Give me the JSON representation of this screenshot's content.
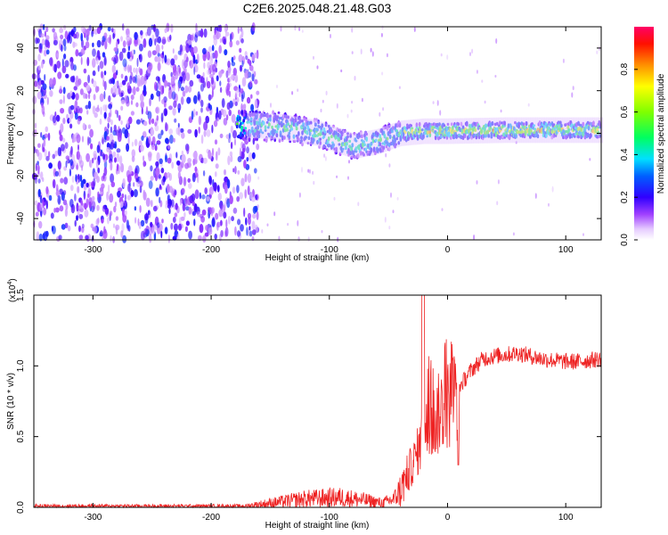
{
  "title": "C2E6.2025.048.21.48.G03",
  "chart_data": [
    {
      "type": "heatmap",
      "name": "spectrogram",
      "xlabel": "Height of straight line (km)",
      "ylabel": "Frequency (Hz)",
      "xlim": [
        -350,
        130
      ],
      "ylim": [
        -50,
        50
      ],
      "xticks": [
        "-300",
        "-200",
        "-100",
        "0",
        "100"
      ],
      "xtick_values": [
        -300,
        -200,
        -100,
        0,
        100
      ],
      "yticks": [
        "-40",
        "-20",
        "0",
        "20",
        "40"
      ],
      "ytick_values": [
        -40,
        -20,
        0,
        20,
        40
      ],
      "band_center_hz": [
        [
          -175,
          4
        ],
        [
          -140,
          3
        ],
        [
          -110,
          0
        ],
        [
          -80,
          -6
        ],
        [
          -60,
          -4
        ],
        [
          -40,
          0
        ],
        [
          -20,
          1
        ],
        [
          0,
          1
        ],
        [
          50,
          1.5
        ],
        [
          130,
          1.5
        ]
      ],
      "noise_region_km": [
        -350,
        -165
      ],
      "colorbar": {
        "label": "Normalized spectral amplitude",
        "range": [
          0,
          1
        ],
        "ticks": [
          "0.0",
          "0.2",
          "0.4",
          "0.6",
          "0.8"
        ],
        "tick_values": [
          0.0,
          0.2,
          0.4,
          0.6,
          0.8
        ],
        "colors": [
          "#ffffff",
          "#cc99ff",
          "#7f00ff",
          "#0000ff",
          "#00ffff",
          "#00ff00",
          "#ffff00",
          "#ff8000",
          "#ff0000",
          "#ff0066"
        ]
      }
    },
    {
      "type": "line",
      "name": "snr",
      "xlabel": "Height of straight line (km)",
      "ylabel": "SNR (10 * v/v)",
      "scale_label": "(x10",
      "scale_exponent": "4",
      "scale_suffix": ")",
      "xlim": [
        -350,
        130
      ],
      "ylim": [
        0,
        1.5
      ],
      "xticks": [
        "-300",
        "-200",
        "-100",
        "0",
        "100"
      ],
      "xtick_values": [
        -300,
        -200,
        -100,
        0,
        100
      ],
      "yticks": [
        "0.0",
        "0.5",
        "1.0",
        "1.5"
      ],
      "ytick_values": [
        0.0,
        0.5,
        1.0,
        1.5
      ],
      "line_color": "#ee2222",
      "series": [
        {
          "name": "SNR",
          "x": [
            -350,
            -300,
            -250,
            -200,
            -170,
            -150,
            -120,
            -90,
            -70,
            -55,
            -45,
            -38,
            -30,
            -25,
            -20,
            -15,
            -10,
            -5,
            0,
            10,
            20,
            30,
            40,
            50,
            60,
            70,
            80,
            90,
            100,
            110,
            120,
            130
          ],
          "y": [
            0.01,
            0.01,
            0.01,
            0.01,
            0.01,
            0.03,
            0.06,
            0.07,
            0.05,
            0.03,
            0.06,
            0.15,
            0.3,
            0.4,
            0.5,
            0.58,
            0.62,
            0.7,
            0.72,
            0.85,
            0.97,
            1.05,
            1.07,
            1.08,
            1.09,
            1.07,
            1.05,
            1.04,
            1.03,
            1.03,
            1.04,
            1.05
          ]
        }
      ]
    }
  ]
}
